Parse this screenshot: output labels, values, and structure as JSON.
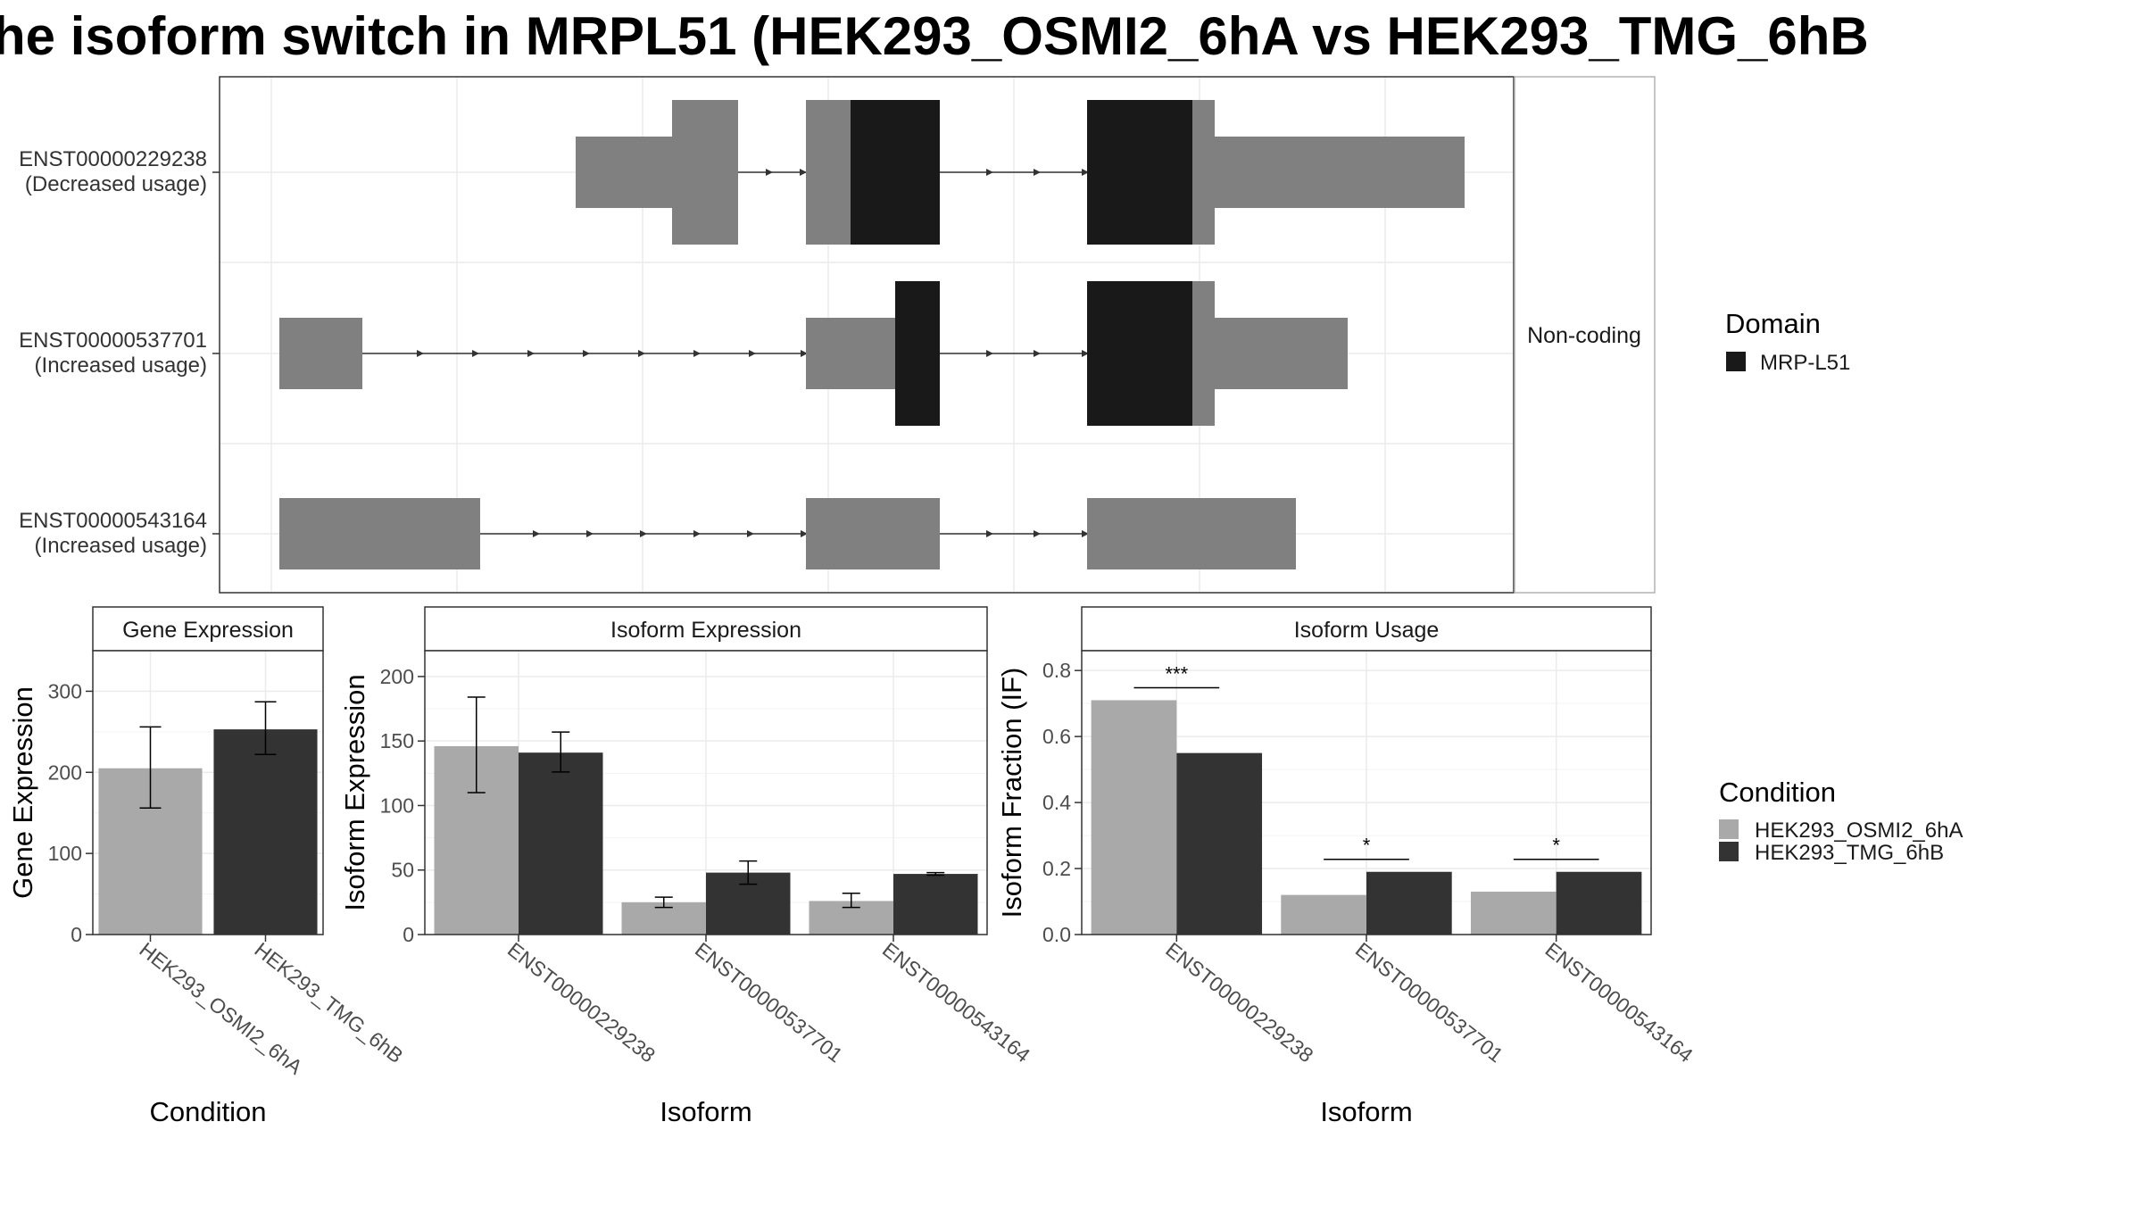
{
  "title": "he isoform switch in MRPL51 (HEK293_OSMI2_6hA vs HEK293_TMG_6hB",
  "colors": {
    "condition_a": "#a9a9a9",
    "condition_b": "#333333",
    "domain": "#191919",
    "exon": "#808080"
  },
  "structure": {
    "facet_label": "Non-coding",
    "isoforms": [
      {
        "id": "ENST00000229238",
        "usage": "(Decreased usage)"
      },
      {
        "id": "ENST00000537701",
        "usage": "(Increased usage)"
      },
      {
        "id": "ENST00000543164",
        "usage": "(Increased usage)"
      }
    ]
  },
  "legends": {
    "domain": {
      "title": "Domain",
      "items": [
        {
          "label": "MRP-L51",
          "color": "#191919"
        }
      ]
    },
    "condition": {
      "title": "Condition",
      "items": [
        {
          "label": "HEK293_OSMI2_6hA",
          "color": "#a9a9a9"
        },
        {
          "label": "HEK293_TMG_6hB",
          "color": "#333333"
        }
      ]
    }
  },
  "chart_data": [
    {
      "type": "bar",
      "strip": "Gene Expression",
      "xlabel": "Condition",
      "ylabel": "Gene Expression",
      "ylim": [
        0,
        350
      ],
      "yticks": [
        "0",
        "100",
        "200",
        "300"
      ],
      "categories": [
        "HEK293_OSMI2_6hA",
        "HEK293_TMG_6hB"
      ],
      "values": [
        205,
        253
      ],
      "errors": [
        [
          156,
          256
        ],
        [
          222,
          287
        ]
      ]
    },
    {
      "type": "bar",
      "strip": "Isoform Expression",
      "xlabel": "Isoform",
      "ylabel": "Isoform Expression",
      "ylim": [
        0,
        220
      ],
      "yticks": [
        "0",
        "50",
        "100",
        "150",
        "200"
      ],
      "categories": [
        "ENST00000229238",
        "ENST00000537701",
        "ENST00000543164"
      ],
      "series": [
        {
          "name": "HEK293_OSMI2_6hA",
          "values": [
            146,
            25,
            26
          ],
          "errors": [
            [
              110,
              184
            ],
            [
              21,
              29
            ],
            [
              21,
              32
            ]
          ]
        },
        {
          "name": "HEK293_TMG_6hB",
          "values": [
            141,
            48,
            47
          ],
          "errors": [
            [
              126,
              157
            ],
            [
              39,
              57
            ],
            [
              46,
              48
            ]
          ]
        }
      ]
    },
    {
      "type": "bar",
      "strip": "Isoform Usage",
      "xlabel": "Isoform",
      "ylabel": "Isoform Fraction (IF)",
      "ylim": [
        0,
        0.86
      ],
      "yticks": [
        "0.0",
        "0.2",
        "0.4",
        "0.6",
        "0.8"
      ],
      "categories": [
        "ENST00000229238",
        "ENST00000537701",
        "ENST00000543164"
      ],
      "series": [
        {
          "name": "HEK293_OSMI2_6hA",
          "values": [
            0.71,
            0.12,
            0.13
          ]
        },
        {
          "name": "HEK293_TMG_6hB",
          "values": [
            0.55,
            0.19,
            0.19
          ]
        }
      ],
      "significance": [
        "***",
        "*",
        "*"
      ]
    }
  ]
}
